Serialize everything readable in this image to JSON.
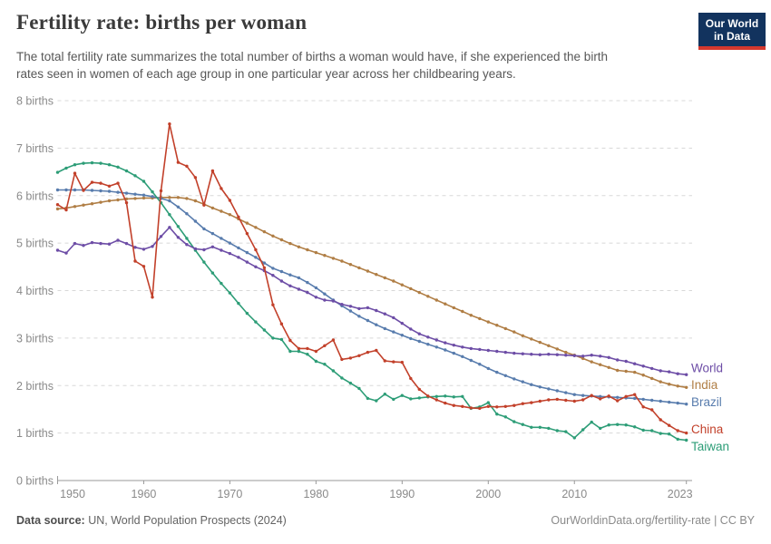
{
  "header": {
    "title": "Fertility rate: births per woman",
    "subtitle_line1": "The total fertility rate summarizes the total number of births a woman would have, if she experienced the birth",
    "subtitle_line2": "rates seen in women of each age group in one particular year across her childbearing years."
  },
  "logo": {
    "line1": "Our World",
    "line2": "in Data",
    "bg_color": "#12335e",
    "accent_color": "#d5382e"
  },
  "footer": {
    "source_label": "Data source:",
    "source_value": " UN, World Population Prospects (2024)",
    "credit": "OurWorldinData.org/fertility-rate | CC BY"
  },
  "chart_data": {
    "type": "line",
    "title": "Fertility rate: births per woman",
    "xlabel": "",
    "ylabel": "births",
    "x_start": 1950,
    "x_end": 2023,
    "ylim": [
      0,
      8
    ],
    "grid": "horizontal-dashed",
    "legend_position": "right-of-line-ends",
    "yticks": [
      0,
      1,
      2,
      3,
      4,
      5,
      6,
      7,
      8
    ],
    "ytick_labels": [
      "0 births",
      "1 births",
      "2 births",
      "3 births",
      "4 births",
      "5 births",
      "6 births",
      "7 births",
      "8 births"
    ],
    "xticks": [
      1950,
      1960,
      1970,
      1980,
      1990,
      2000,
      2010,
      2023
    ],
    "xtick_labels": [
      "1950",
      "1960",
      "1970",
      "1980",
      "1990",
      "2000",
      "2010",
      "2023"
    ],
    "axis_color": "#9a9a9a",
    "gridline_color": "#d8d8d8",
    "tick_label_color": "#8a8a8a",
    "series": [
      {
        "name": "World",
        "color": "#6d4da6",
        "values": [
          4.85,
          4.79,
          4.99,
          4.95,
          5.01,
          4.99,
          4.98,
          5.06,
          4.99,
          4.91,
          4.87,
          4.93,
          5.14,
          5.33,
          5.12,
          4.97,
          4.88,
          4.86,
          4.92,
          4.85,
          4.78,
          4.7,
          4.6,
          4.5,
          4.42,
          4.32,
          4.2,
          4.1,
          4.03,
          3.96,
          3.86,
          3.8,
          3.78,
          3.71,
          3.67,
          3.62,
          3.64,
          3.58,
          3.51,
          3.43,
          3.31,
          3.19,
          3.09,
          3.02,
          2.96,
          2.9,
          2.85,
          2.81,
          2.78,
          2.76,
          2.74,
          2.72,
          2.7,
          2.68,
          2.67,
          2.66,
          2.65,
          2.66,
          2.65,
          2.64,
          2.63,
          2.62,
          2.64,
          2.62,
          2.59,
          2.54,
          2.51,
          2.46,
          2.41,
          2.36,
          2.31,
          2.29,
          2.25,
          2.23
        ]
      },
      {
        "name": "India",
        "color": "#b07e45",
        "values": [
          5.72,
          5.74,
          5.77,
          5.8,
          5.83,
          5.86,
          5.89,
          5.91,
          5.93,
          5.94,
          5.95,
          5.95,
          5.96,
          5.96,
          5.96,
          5.94,
          5.89,
          5.82,
          5.74,
          5.67,
          5.6,
          5.51,
          5.42,
          5.33,
          5.24,
          5.15,
          5.07,
          4.99,
          4.92,
          4.86,
          4.8,
          4.74,
          4.68,
          4.62,
          4.55,
          4.48,
          4.41,
          4.34,
          4.27,
          4.2,
          4.12,
          4.04,
          3.96,
          3.88,
          3.8,
          3.72,
          3.64,
          3.56,
          3.48,
          3.41,
          3.34,
          3.27,
          3.2,
          3.13,
          3.05,
          2.98,
          2.91,
          2.84,
          2.77,
          2.7,
          2.64,
          2.57,
          2.5,
          2.44,
          2.38,
          2.32,
          2.3,
          2.28,
          2.22,
          2.15,
          2.08,
          2.03,
          1.99,
          1.96
        ]
      },
      {
        "name": "Brazil",
        "color": "#587cad",
        "values": [
          6.12,
          6.12,
          6.12,
          6.12,
          6.11,
          6.1,
          6.09,
          6.07,
          6.05,
          6.03,
          6.01,
          5.98,
          5.94,
          5.89,
          5.76,
          5.62,
          5.46,
          5.3,
          5.2,
          5.1,
          5.0,
          4.9,
          4.8,
          4.7,
          4.58,
          4.47,
          4.4,
          4.33,
          4.27,
          4.17,
          4.06,
          3.93,
          3.8,
          3.68,
          3.57,
          3.46,
          3.37,
          3.28,
          3.2,
          3.13,
          3.06,
          2.99,
          2.93,
          2.87,
          2.81,
          2.75,
          2.68,
          2.61,
          2.53,
          2.45,
          2.36,
          2.28,
          2.21,
          2.14,
          2.08,
          2.02,
          1.97,
          1.93,
          1.89,
          1.85,
          1.81,
          1.79,
          1.78,
          1.77,
          1.76,
          1.75,
          1.74,
          1.73,
          1.71,
          1.69,
          1.67,
          1.65,
          1.63,
          1.61
        ]
      },
      {
        "name": "China",
        "color": "#c2402a",
        "values": [
          5.81,
          5.7,
          6.47,
          6.11,
          6.28,
          6.26,
          6.2,
          6.26,
          5.85,
          4.62,
          4.51,
          3.86,
          6.1,
          7.51,
          6.7,
          6.62,
          6.38,
          5.8,
          6.52,
          6.15,
          5.9,
          5.55,
          5.2,
          4.86,
          4.48,
          3.7,
          3.3,
          2.95,
          2.78,
          2.78,
          2.72,
          2.84,
          2.96,
          2.55,
          2.58,
          2.63,
          2.7,
          2.74,
          2.52,
          2.5,
          2.49,
          2.15,
          1.92,
          1.78,
          1.7,
          1.63,
          1.58,
          1.56,
          1.53,
          1.52,
          1.56,
          1.55,
          1.56,
          1.58,
          1.62,
          1.64,
          1.67,
          1.7,
          1.71,
          1.69,
          1.67,
          1.7,
          1.79,
          1.72,
          1.78,
          1.68,
          1.77,
          1.81,
          1.55,
          1.49,
          1.28,
          1.16,
          1.05,
          1.0
        ]
      },
      {
        "name": "Taiwan",
        "color": "#2d9d77",
        "values": [
          6.49,
          6.58,
          6.65,
          6.68,
          6.69,
          6.68,
          6.65,
          6.6,
          6.52,
          6.42,
          6.3,
          6.08,
          5.85,
          5.6,
          5.35,
          5.1,
          4.85,
          4.6,
          4.37,
          4.15,
          3.95,
          3.73,
          3.52,
          3.34,
          3.17,
          3.0,
          2.97,
          2.72,
          2.72,
          2.66,
          2.51,
          2.45,
          2.31,
          2.16,
          2.05,
          1.94,
          1.73,
          1.68,
          1.82,
          1.71,
          1.79,
          1.72,
          1.74,
          1.76,
          1.77,
          1.78,
          1.76,
          1.77,
          1.52,
          1.55,
          1.64,
          1.4,
          1.34,
          1.24,
          1.18,
          1.12,
          1.12,
          1.1,
          1.05,
          1.03,
          0.9,
          1.07,
          1.23,
          1.1,
          1.17,
          1.18,
          1.17,
          1.13,
          1.06,
          1.05,
          0.99,
          0.98,
          0.87,
          0.85
        ]
      }
    ]
  }
}
